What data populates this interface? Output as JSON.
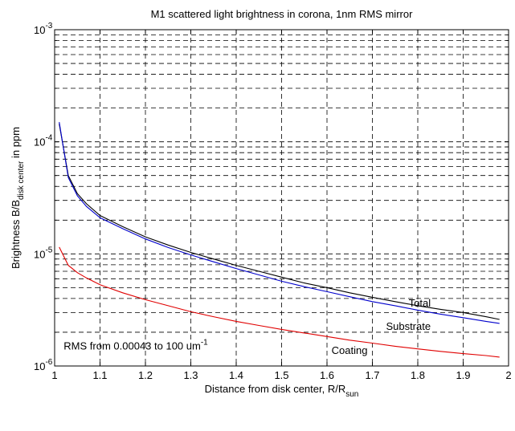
{
  "chart_data": {
    "type": "line",
    "title": "M1 scattered light brightness in corona, 1nm RMS mirror",
    "xlabel": {
      "main": "Distance from disk center, R/R",
      "sub": "sun"
    },
    "ylabel": {
      "main": "Brightness B/B",
      "sub": "disk center",
      "tail": " in ppm"
    },
    "x_ticks": [
      "1",
      "1.1",
      "1.2",
      "1.3",
      "1.4",
      "1.5",
      "1.6",
      "1.7",
      "1.8",
      "1.9",
      "2"
    ],
    "y_ticks": [
      {
        "base": "10",
        "exp": "-6"
      },
      {
        "base": "10",
        "exp": "-5"
      },
      {
        "base": "10",
        "exp": "-4"
      },
      {
        "base": "10",
        "exp": "-3"
      }
    ],
    "xlim": [
      1,
      2
    ],
    "ylim": [
      1e-06,
      0.001
    ],
    "yscale": "log",
    "grid": true,
    "annotations": [
      {
        "text": "Total",
        "x": 1.78,
        "y": 3.4e-06
      },
      {
        "text": "Substrate",
        "x": 1.73,
        "y": 2.1e-06
      },
      {
        "text": "Coating",
        "x": 1.61,
        "y": 1.28e-06
      },
      {
        "text": "RMS from 0.00043 to 100 um^-1",
        "text_main": "RMS from 0.00043 to 100 um",
        "text_exp": "-1",
        "x": 1.02,
        "y": 1.4e-06
      }
    ],
    "series": [
      {
        "color": "#000000",
        "x": [
          1.01,
          1.03,
          1.05,
          1.07,
          1.1,
          1.15,
          1.2,
          1.25,
          1.3,
          1.35,
          1.4,
          1.45,
          1.5,
          1.55,
          1.6,
          1.65,
          1.7,
          1.75,
          1.8,
          1.85,
          1.9,
          1.95,
          1.98
        ],
        "values": [
          0.000145,
          5e-05,
          3.45e-05,
          2.8e-05,
          2.2e-05,
          1.75e-05,
          1.42e-05,
          1.2e-05,
          1.03e-05,
          9e-06,
          7.9e-06,
          7e-06,
          6.2e-06,
          5.5e-06,
          5e-06,
          4.5e-06,
          4.1e-06,
          3.75e-06,
          3.45e-06,
          3.2e-06,
          3e-06,
          2.75e-06,
          2.6e-06
        ]
      },
      {
        "color": "#0000cc",
        "x": [
          1.01,
          1.03,
          1.05,
          1.07,
          1.1,
          1.15,
          1.2,
          1.25,
          1.3,
          1.35,
          1.4,
          1.45,
          1.5,
          1.55,
          1.6,
          1.65,
          1.7,
          1.75,
          1.8,
          1.85,
          1.9,
          1.95,
          1.98
        ],
        "values": [
          0.00015,
          4.8e-05,
          3.3e-05,
          2.65e-05,
          2.1e-05,
          1.68e-05,
          1.36e-05,
          1.14e-05,
          9.8e-06,
          8.5e-06,
          7.4e-06,
          6.5e-06,
          5.7e-06,
          5.1e-06,
          4.6e-06,
          4.15e-06,
          3.75e-06,
          3.45e-06,
          3.15e-06,
          2.9e-06,
          2.7e-06,
          2.5e-06,
          2.4e-06
        ]
      },
      {
        "color": "#e00000",
        "x": [
          1.01,
          1.03,
          1.05,
          1.07,
          1.1,
          1.15,
          1.2,
          1.25,
          1.3,
          1.35,
          1.4,
          1.45,
          1.5,
          1.55,
          1.6,
          1.65,
          1.7,
          1.75,
          1.8,
          1.85,
          1.9,
          1.95,
          1.98
        ],
        "values": [
          1.15e-05,
          7.9e-06,
          6.8e-06,
          6.1e-06,
          5.3e-06,
          4.5e-06,
          3.9e-06,
          3.45e-06,
          3.05e-06,
          2.75e-06,
          2.5e-06,
          2.3e-06,
          2.12e-06,
          1.97e-06,
          1.83e-06,
          1.7e-06,
          1.6e-06,
          1.5e-06,
          1.42e-06,
          1.35e-06,
          1.29e-06,
          1.24e-06,
          1.2e-06
        ]
      }
    ]
  }
}
